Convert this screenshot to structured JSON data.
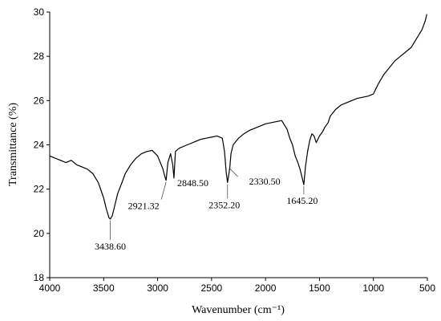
{
  "chart_data": {
    "type": "line",
    "title": "",
    "xlabel": "Wavenumber (cm⁻¹)",
    "ylabel": "Transmittance (%)",
    "xlim": [
      4000,
      500
    ],
    "ylim": [
      18,
      30
    ],
    "x_reversed": true,
    "x_ticks": [
      4000,
      3500,
      3000,
      2500,
      2000,
      1500,
      1000,
      500
    ],
    "y_ticks": [
      18,
      20,
      22,
      24,
      26,
      28,
      30
    ],
    "grid": false,
    "legend": "none",
    "series": [
      {
        "color": "#000000",
        "x": [
          4000,
          3950,
          3900,
          3850,
          3800,
          3750,
          3700,
          3650,
          3600,
          3550,
          3500,
          3475,
          3450,
          3438.6,
          3420,
          3400,
          3370,
          3330,
          3300,
          3250,
          3200,
          3150,
          3100,
          3050,
          3000,
          2950,
          2935,
          2921.32,
          2905,
          2880,
          2860,
          2848.5,
          2835,
          2800,
          2750,
          2700,
          2650,
          2600,
          2550,
          2500,
          2450,
          2400,
          2380,
          2365,
          2352.2,
          2342,
          2330.5,
          2320,
          2300,
          2250,
          2200,
          2150,
          2100,
          2050,
          2000,
          1950,
          1900,
          1850,
          1800,
          1775,
          1750,
          1725,
          1700,
          1680,
          1660,
          1645.2,
          1630,
          1610,
          1590,
          1570,
          1550,
          1530,
          1500,
          1470,
          1450,
          1420,
          1400,
          1350,
          1300,
          1250,
          1200,
          1150,
          1100,
          1050,
          1000,
          950,
          900,
          850,
          800,
          750,
          700,
          650,
          600,
          550,
          520,
          505
        ],
        "y": [
          23.5,
          23.4,
          23.3,
          23.2,
          23.3,
          23.1,
          23.0,
          22.9,
          22.7,
          22.3,
          21.6,
          21.1,
          20.7,
          20.65,
          20.8,
          21.2,
          21.8,
          22.3,
          22.7,
          23.1,
          23.4,
          23.6,
          23.7,
          23.75,
          23.5,
          22.9,
          22.6,
          22.4,
          23.2,
          23.6,
          23.1,
          22.5,
          23.7,
          23.85,
          23.95,
          24.05,
          24.15,
          24.25,
          24.3,
          24.35,
          24.4,
          24.3,
          23.7,
          22.8,
          22.3,
          22.6,
          23.0,
          23.6,
          24.0,
          24.3,
          24.5,
          24.65,
          24.75,
          24.85,
          24.95,
          25.0,
          25.05,
          25.1,
          24.7,
          24.3,
          24.0,
          23.5,
          23.2,
          22.9,
          22.5,
          22.2,
          23.0,
          23.7,
          24.2,
          24.5,
          24.4,
          24.1,
          24.4,
          24.6,
          24.8,
          25.0,
          25.3,
          25.6,
          25.8,
          25.9,
          26.0,
          26.1,
          26.15,
          26.2,
          26.3,
          26.8,
          27.2,
          27.5,
          27.8,
          28.0,
          28.2,
          28.4,
          28.8,
          29.2,
          29.6,
          29.9
        ]
      }
    ],
    "annotations": [
      {
        "label": "3438.60",
        "x": 3438.6,
        "y": 20.65
      },
      {
        "label": "2921.32",
        "x": 2921.32,
        "y": 22.4
      },
      {
        "label": "2848.50",
        "x": 2848.5,
        "y": 22.5
      },
      {
        "label": "2352.20",
        "x": 2352.2,
        "y": 22.3
      },
      {
        "label": "2330.50",
        "x": 2330.5,
        "y": 23.0
      },
      {
        "label": "1645.20",
        "x": 1645.2,
        "y": 22.2
      }
    ]
  }
}
